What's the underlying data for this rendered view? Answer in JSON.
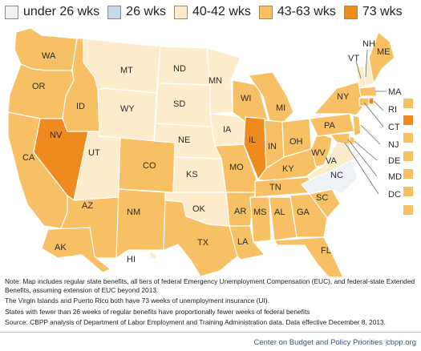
{
  "colors": {
    "under26": "#eef2f7",
    "wk26": "#c8d9e8",
    "wk40_42": "#fdeccb",
    "wk43_63": "#f7c064",
    "wk73": "#ef8a1f"
  },
  "legend": [
    {
      "label": "under 26 wks",
      "color": "#eef2f7"
    },
    {
      "label": "26 wks",
      "color": "#c8d9e8"
    },
    {
      "label": "40-42 wks",
      "color": "#fdeccb"
    },
    {
      "label": "43-63 wks",
      "color": "#f7c064"
    },
    {
      "label": "73 wks",
      "color": "#ef8a1f"
    }
  ],
  "states": {
    "WA": "WA",
    "OR": "OR",
    "CA": "CA",
    "ID": "ID",
    "NV": "NV",
    "MT": "MT",
    "WY": "WY",
    "UT": "UT",
    "AZ": "AZ",
    "CO": "CO",
    "NM": "NM",
    "ND": "ND",
    "SD": "SD",
    "NE": "NE",
    "KS": "KS",
    "OK": "OK",
    "TX": "TX",
    "MN": "MN",
    "IA": "IA",
    "MO": "MO",
    "AR": "AR",
    "LA": "LA",
    "WI": "WI",
    "IL": "IL",
    "MI": "MI",
    "IN": "IN",
    "OH": "OH",
    "KY": "KY",
    "TN": "TN",
    "MS": "MS",
    "AL": "AL",
    "GA": "GA",
    "FL": "FL",
    "SC": "SC",
    "NC": "NC",
    "VA": "VA",
    "WV": "WV",
    "PA": "PA",
    "NY": "NY",
    "VT": "VT",
    "NH": "NH",
    "ME": "ME",
    "AK": "AK",
    "HI": "HI",
    "MA": "MA",
    "RI": "RI",
    "CT": "CT",
    "NJ": "NJ",
    "DE": "DE",
    "MD": "MD",
    "DC": "DC"
  },
  "notes": [
    "Note:  Map includes regular state benefits, all tiers of federal Emergency Unemployment Compensation (EUC), and federal-state Extended Benefits, assuming extension of EUC beyond 2013.",
    "The Virgin Islands and Puerto Rico both have 73 weeks of unemployment insurance (UI).",
    "States with fewer than 26 weeks of regular benefits have proportionally fewer weeks of federal benefits",
    "Source: CBPP analysis of Department of Labor Employment and Training Administration data. Data effective December 8, 2013."
  ],
  "footer": {
    "source": "Center on Budget and Policy Priorities",
    "separator": "|",
    "url": "cbpp.org"
  }
}
